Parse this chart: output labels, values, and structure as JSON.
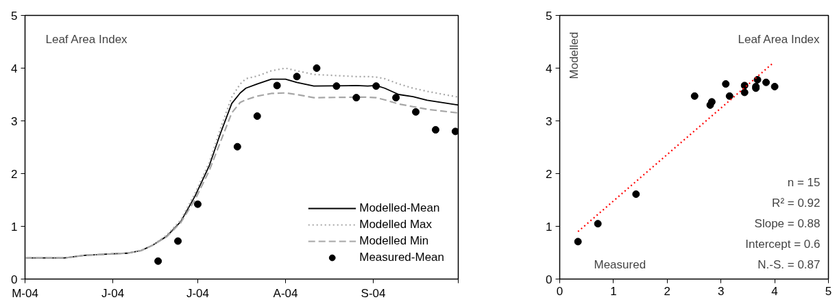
{
  "chart_data": [
    {
      "type": "line",
      "title": "Leaf Area Index",
      "xlim": [
        "2004-05-01",
        "2004-10-01"
      ],
      "xticks": [
        {
          "value": "2004-05-01",
          "label": "M-04"
        },
        {
          "value": "2004-06-01",
          "label": "J-04"
        },
        {
          "value": "2004-07-01",
          "label": "J-04"
        },
        {
          "value": "2004-08-01",
          "label": "A-04"
        },
        {
          "value": "2004-09-01",
          "label": "S-04"
        },
        {
          "value": "2004-10-01",
          "label": null
        }
      ],
      "ylim": [
        0,
        5
      ],
      "yticks": [
        0,
        1,
        2,
        3,
        4,
        5
      ],
      "legend": "bottom right",
      "grid": false,
      "x": [
        "2004-05-01",
        "2004-05-15",
        "2004-05-22",
        "2004-06-01",
        "2004-06-06",
        "2004-06-11",
        "2004-06-15",
        "2004-06-20",
        "2004-06-25",
        "2004-06-30",
        "2004-07-05",
        "2004-07-09",
        "2004-07-13",
        "2004-07-16",
        "2004-07-18",
        "2004-07-22",
        "2004-07-27",
        "2004-08-01",
        "2004-08-05",
        "2004-08-11",
        "2004-08-26",
        "2004-08-30",
        "2004-09-02",
        "2004-09-05",
        "2004-09-10",
        "2004-09-15",
        "2004-09-20",
        "2004-10-01"
      ],
      "series": [
        {
          "name": "Modelled-Mean",
          "line_style": "solid",
          "marker": "none",
          "color": "#000000",
          "values": [
            0.4,
            0.4,
            0.45,
            0.48,
            0.49,
            0.54,
            0.64,
            0.81,
            1.09,
            1.57,
            2.14,
            2.76,
            3.33,
            3.53,
            3.62,
            3.7,
            3.79,
            3.79,
            3.73,
            3.66,
            3.67,
            3.66,
            3.67,
            3.62,
            3.5,
            3.46,
            3.39,
            3.3
          ]
        },
        {
          "name": "Modelled Max",
          "line_style": "dotted",
          "marker": "none",
          "color": "#a6a6a6",
          "values": [
            0.4,
            0.4,
            0.45,
            0.48,
            0.49,
            0.54,
            0.64,
            0.83,
            1.12,
            1.62,
            2.2,
            2.85,
            3.45,
            3.7,
            3.8,
            3.85,
            3.95,
            4.0,
            3.95,
            3.88,
            3.84,
            3.84,
            3.83,
            3.8,
            3.7,
            3.62,
            3.56,
            3.45
          ]
        },
        {
          "name": "Modelled Min",
          "line_style": "dashed",
          "marker": "none",
          "color": "#a6a6a6",
          "values": [
            0.4,
            0.4,
            0.45,
            0.48,
            0.49,
            0.54,
            0.64,
            0.8,
            1.07,
            1.5,
            2.05,
            2.6,
            3.15,
            3.35,
            3.4,
            3.47,
            3.52,
            3.53,
            3.5,
            3.44,
            3.45,
            3.45,
            3.44,
            3.4,
            3.32,
            3.27,
            3.22,
            3.15
          ]
        },
        {
          "name": "Measured-Mean",
          "type": "scatter",
          "marker": "circle",
          "color": "#000000",
          "x": [
            "2004-06-17",
            "2004-06-24",
            "2004-07-01",
            "2004-07-15",
            "2004-07-22",
            "2004-07-29",
            "2004-08-05",
            "2004-08-12",
            "2004-08-19",
            "2004-08-26",
            "2004-09-02",
            "2004-09-09",
            "2004-09-16",
            "2004-09-23",
            "2004-09-30"
          ],
          "values": [
            0.34,
            0.72,
            1.42,
            2.51,
            3.09,
            3.67,
            3.84,
            4.0,
            3.66,
            3.44,
            3.66,
            3.44,
            3.17,
            2.83,
            2.8
          ]
        }
      ]
    },
    {
      "type": "scatter",
      "title": "Leaf Area Index",
      "xlabel": "Measured",
      "ylabel": "Modelled",
      "xlim": [
        0,
        5
      ],
      "xticks": [
        0,
        1,
        2,
        3,
        4,
        5
      ],
      "ylim": [
        0,
        5
      ],
      "yticks": [
        0,
        1,
        2,
        3,
        4,
        5
      ],
      "grid": false,
      "annotations": [
        "n = 15",
        "R² = 0.92",
        "Slope = 0.88",
        "Intercept = 0.6",
        "N.-S. = 0.87"
      ],
      "series": [
        {
          "marker": "circle",
          "color": "#000000",
          "x": [
            0.34,
            0.71,
            1.42,
            2.51,
            2.8,
            2.83,
            3.09,
            3.16,
            3.44,
            3.44,
            3.65,
            3.65,
            3.68,
            3.84,
            4.0
          ],
          "values": [
            0.71,
            1.05,
            1.61,
            3.47,
            3.3,
            3.36,
            3.7,
            3.47,
            3.67,
            3.54,
            3.65,
            3.62,
            3.78,
            3.73,
            3.65
          ]
        },
        {
          "type": "line",
          "line_style": "dotted",
          "marker": "none",
          "color": "#ff0000",
          "x": [
            0.34,
            3.95
          ],
          "values": [
            0.9,
            4.08
          ]
        }
      ]
    }
  ]
}
